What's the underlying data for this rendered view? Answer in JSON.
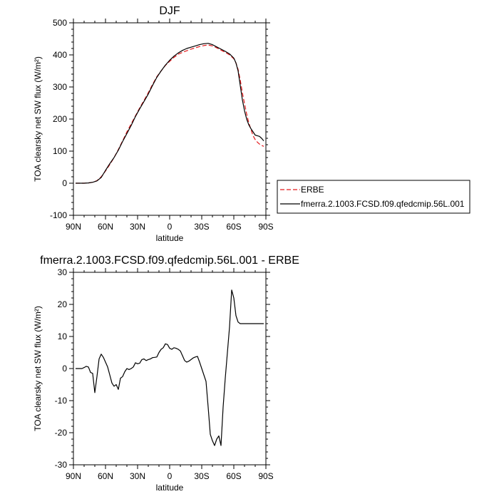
{
  "chart_data": [
    {
      "type": "line",
      "title": "DJF",
      "xlabel": "latitude",
      "ylabel": "TOA clearsky net SW flux (W/m²)",
      "xlim": [
        90,
        -90
      ],
      "ylim": [
        -100,
        500
      ],
      "xticks": [
        {
          "value": 90,
          "label": "90N"
        },
        {
          "value": 60,
          "label": "60N"
        },
        {
          "value": 30,
          "label": "30N"
        },
        {
          "value": 0,
          "label": "0"
        },
        {
          "value": -30,
          "label": "30S"
        },
        {
          "value": -60,
          "label": "60S"
        },
        {
          "value": -90,
          "label": "90S"
        }
      ],
      "yticks": [
        -100,
        0,
        100,
        200,
        300,
        400,
        500
      ],
      "legend_placement": "right",
      "series": [
        {
          "name": "ERBE",
          "color": "#e41a1c",
          "dash": "dashed",
          "x": [
            88,
            84,
            80,
            76,
            72,
            68,
            64,
            60,
            56,
            52,
            48,
            44,
            40,
            36,
            32,
            28,
            24,
            20,
            16,
            12,
            8,
            4,
            0,
            -4,
            -8,
            -12,
            -16,
            -20,
            -24,
            -28,
            -32,
            -36,
            -40,
            -44,
            -48,
            -52,
            -56,
            -60,
            -62,
            -64,
            -66,
            -68,
            -70,
            -72,
            -74,
            -76,
            -78,
            -80,
            -82,
            -84,
            -86,
            -88
          ],
          "y": [
            0,
            0,
            0,
            1,
            3,
            8,
            20,
            38,
            58,
            80,
            105,
            132,
            160,
            185,
            210,
            235,
            258,
            282,
            308,
            332,
            350,
            367,
            380,
            392,
            402,
            408,
            413,
            418,
            422,
            426,
            429,
            431,
            428,
            422,
            415,
            408,
            400,
            388,
            375,
            355,
            322,
            282,
            248,
            216,
            188,
            168,
            148,
            136,
            128,
            122,
            118,
            115
          ]
        },
        {
          "name": "fmerra.2.1003.FCSD.f09.qfedcmip.56L.001",
          "color": "#000000",
          "dash": "solid",
          "x": [
            88,
            84,
            80,
            76,
            72,
            68,
            64,
            60,
            56,
            52,
            48,
            44,
            40,
            36,
            32,
            28,
            24,
            20,
            16,
            12,
            8,
            4,
            0,
            -4,
            -8,
            -12,
            -16,
            -20,
            -24,
            -28,
            -32,
            -36,
            -40,
            -44,
            -48,
            -52,
            -56,
            -60,
            -62,
            -64,
            -66,
            -68,
            -70,
            -72,
            -74,
            -76,
            -78,
            -80,
            -82,
            -84,
            -86,
            -88
          ],
          "y": [
            0,
            0,
            0,
            1,
            3,
            7,
            18,
            40,
            61,
            80,
            103,
            130,
            155,
            180,
            208,
            232,
            255,
            278,
            305,
            330,
            350,
            368,
            383,
            396,
            406,
            414,
            420,
            424,
            428,
            432,
            435,
            436,
            432,
            425,
            418,
            411,
            403,
            390,
            375,
            350,
            305,
            260,
            226,
            200,
            182,
            170,
            160,
            150,
            148,
            146,
            140,
            132
          ]
        }
      ]
    },
    {
      "type": "line",
      "title": "fmerra.2.1003.FCSD.f09.qfedcmip.56L.001 - ERBE",
      "xlabel": "latitude",
      "ylabel": "TOA clearsky net SW flux (W/m²)",
      "xlim": [
        90,
        -90
      ],
      "ylim": [
        -30,
        30
      ],
      "xticks": [
        {
          "value": 90,
          "label": "90N"
        },
        {
          "value": 60,
          "label": "60N"
        },
        {
          "value": 30,
          "label": "30N"
        },
        {
          "value": 0,
          "label": "0"
        },
        {
          "value": -30,
          "label": "30S"
        },
        {
          "value": -60,
          "label": "60S"
        },
        {
          "value": -90,
          "label": "90S"
        }
      ],
      "yticks": [
        -30,
        -20,
        -10,
        0,
        10,
        20,
        30
      ],
      "series": [
        {
          "name": "",
          "color": "#000000",
          "dash": "solid",
          "x": [
            88,
            86,
            84,
            82,
            80,
            78,
            76,
            74,
            72,
            70,
            68,
            66,
            64,
            62,
            60,
            58,
            56,
            54,
            52,
            50,
            48,
            46,
            44,
            42,
            40,
            38,
            36,
            34,
            32,
            30,
            28,
            26,
            24,
            22,
            20,
            18,
            16,
            14,
            12,
            10,
            8,
            6,
            4,
            2,
            0,
            -2,
            -4,
            -6,
            -8,
            -10,
            -12,
            -14,
            -16,
            -18,
            -20,
            -22,
            -24,
            -26,
            -28,
            -30,
            -32,
            -34,
            -36,
            -38,
            -40,
            -42,
            -44,
            -46,
            -48,
            -50,
            -52,
            -54,
            -56,
            -58,
            -60,
            -62,
            -64,
            -66,
            -68,
            -70,
            -72,
            -74,
            -76,
            -78,
            -80,
            -82,
            -84,
            -86,
            -88
          ],
          "y": [
            0,
            0,
            0,
            0,
            0.3,
            0.7,
            0.5,
            -1.2,
            -1.5,
            -7.5,
            -2.5,
            3.0,
            4.5,
            3.5,
            2.0,
            0.5,
            -2.0,
            -4.5,
            -5.5,
            -5.0,
            -6.5,
            -3.0,
            -2.5,
            -1.0,
            0.0,
            -0.3,
            0.0,
            0.5,
            1.8,
            1.5,
            1.7,
            2.8,
            3.0,
            2.5,
            2.8,
            3.0,
            3.4,
            3.5,
            3.6,
            5.0,
            6.0,
            6.5,
            7.7,
            7.5,
            6.3,
            6.0,
            6.5,
            6.3,
            6.0,
            5.5,
            4.0,
            2.5,
            2.0,
            2.3,
            2.8,
            3.3,
            3.6,
            3.8,
            2.0,
            0.0,
            -2.0,
            -4.0,
            -12.0,
            -20.5,
            -22.5,
            -24.0,
            -22.0,
            -21.0,
            -24.0,
            -12.0,
            -3.0,
            5.0,
            13.0,
            24.5,
            22.0,
            16.5,
            14.5,
            14.0,
            14.0,
            14.0,
            14.0,
            14.0,
            14.0,
            14.0,
            14.0,
            14.0,
            14.0,
            14.0,
            14.0
          ]
        }
      ]
    }
  ]
}
